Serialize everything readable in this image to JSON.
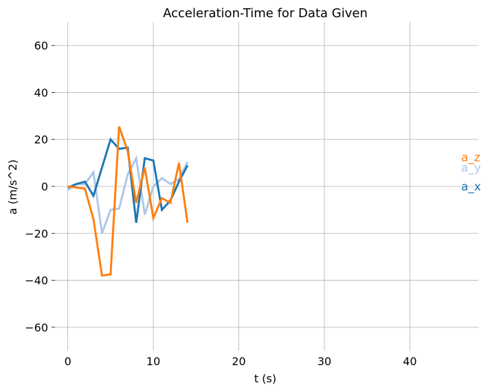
{
  "chart_data": {
    "type": "line",
    "title": "Acceleration-Time for Data Given",
    "xlabel": "t (s)",
    "ylabel": "a (m/s^2)",
    "xlim": [
      -1.5,
      48
    ],
    "ylim": [
      -70,
      70
    ],
    "xticks": [
      0,
      10,
      20,
      30,
      40
    ],
    "yticks": [
      -60,
      -40,
      -20,
      0,
      20,
      40,
      60
    ],
    "xtick_labels": [
      "0",
      "10",
      "20",
      "30",
      "40"
    ],
    "ytick_labels": [
      "−60",
      "−40",
      "−20",
      "0",
      "20",
      "40",
      "60"
    ],
    "grid": true,
    "x": [
      0,
      1,
      2,
      3,
      4,
      5,
      6,
      7,
      8,
      9,
      10,
      11,
      12,
      13,
      14
    ],
    "series": [
      {
        "name": "a_x",
        "color": "#1f77b4",
        "values": [
          -0.5,
          1,
          2,
          -4,
          8,
          20,
          16,
          16.5,
          -15.5,
          12,
          11,
          -10,
          -6,
          2,
          9
        ],
        "label_value": 0
      },
      {
        "name": "a_y",
        "color": "#aec7e8",
        "values": [
          -1.5,
          1,
          1,
          6,
          -20,
          -10,
          -9.5,
          5,
          12,
          -12,
          0,
          3.5,
          1,
          3,
          10.5
        ],
        "label_value": 8
      },
      {
        "name": "a_z",
        "color": "#ff7f0e",
        "values": [
          0,
          -0.5,
          -1,
          -14,
          -38,
          -37.5,
          25.5,
          15,
          -7,
          8,
          -13.5,
          -5,
          -7,
          10,
          -15.5
        ],
        "label_value": 12.5
      }
    ]
  }
}
